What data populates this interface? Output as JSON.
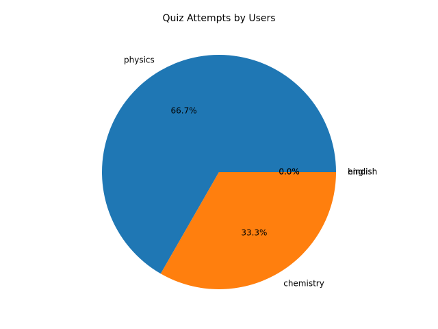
{
  "chart_data": {
    "type": "pie",
    "title": "Quiz Attempts by Users",
    "slices": [
      {
        "label": "physics",
        "percent_label": "66.7%",
        "value": 66.7,
        "color": "#1f77b4"
      },
      {
        "label": "chemistry",
        "percent_label": "33.3%",
        "value": 33.3,
        "color": "#ff7f0e"
      },
      {
        "label": "hindi",
        "percent_label": "0.0%",
        "value": 0,
        "color": "#2ca02c"
      },
      {
        "label": "english",
        "percent_label": "0.0%",
        "value": 0,
        "color": "#d62728"
      }
    ]
  }
}
